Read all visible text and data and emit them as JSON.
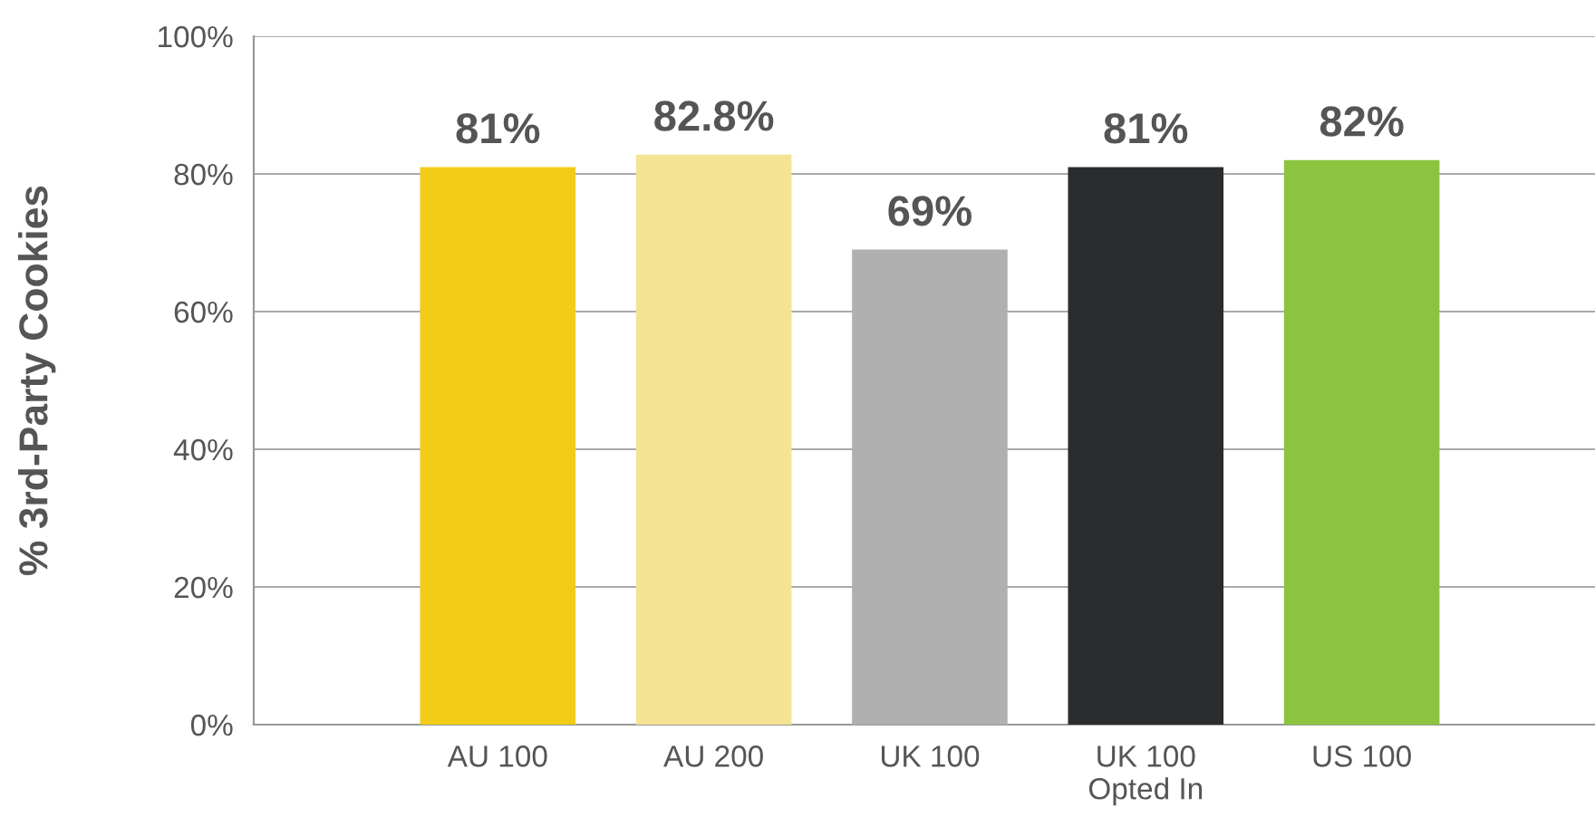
{
  "chart_data": {
    "type": "bar",
    "ylabel": "% 3rd-Party Cookies",
    "categories": [
      "AU 100",
      "AU 200",
      "UK 100",
      "UK 100\nOpted In",
      "US 100"
    ],
    "values": [
      81,
      82.8,
      69,
      81,
      82
    ],
    "colors": [
      "#f2cc17",
      "#f5e394",
      "#b0b0b0",
      "#2b2c2e",
      "#8cc43f"
    ],
    "value_labels": [
      "81%",
      "82.8%",
      "69%",
      "81%",
      "82%"
    ],
    "ylim": [
      0,
      100
    ],
    "yticks": [
      {
        "value": 0,
        "label": "0%"
      },
      {
        "value": 20,
        "label": "20%"
      },
      {
        "value": 40,
        "label": "40%"
      },
      {
        "value": 60,
        "label": "60%"
      },
      {
        "value": 80,
        "label": "80%"
      },
      {
        "value": 100,
        "label": "100%"
      }
    ],
    "grid": "y",
    "legend": false
  }
}
